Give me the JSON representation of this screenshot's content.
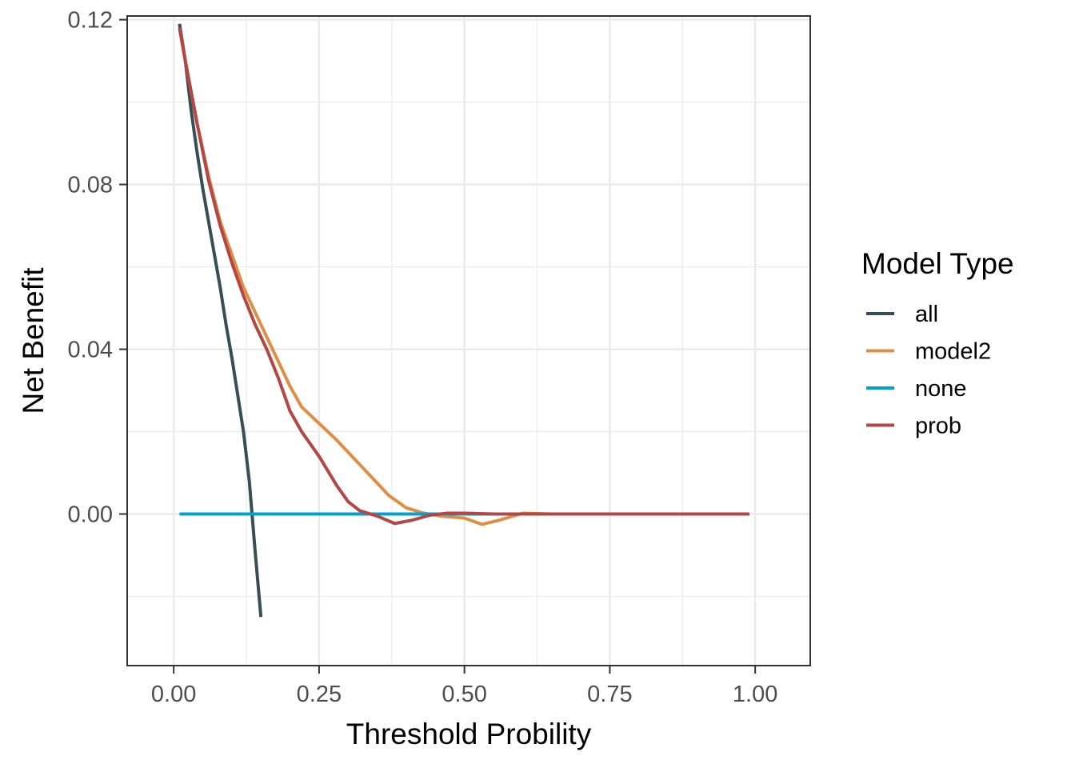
{
  "chart_data": {
    "type": "line",
    "xlabel": "Threshold Probility",
    "ylabel": "Net Benefit",
    "xlim": [
      -0.08,
      1.0947
    ],
    "ylim": [
      -0.0368,
      0.1209
    ],
    "x_ticks": [
      {
        "value": 0.0,
        "label": "0.00"
      },
      {
        "value": 0.25,
        "label": "0.25"
      },
      {
        "value": 0.5,
        "label": "0.50"
      },
      {
        "value": 0.75,
        "label": "0.75"
      },
      {
        "value": 1.0,
        "label": "1.00"
      }
    ],
    "y_ticks": [
      {
        "value": 0.0,
        "label": "0.00"
      },
      {
        "value": 0.04,
        "label": "0.04"
      },
      {
        "value": 0.08,
        "label": "0.08"
      },
      {
        "value": 0.12,
        "label": "0.12"
      }
    ],
    "x_minor_grid": [
      0.125,
      0.375,
      0.625,
      0.875
    ],
    "y_minor_grid": [
      -0.02,
      0.02,
      0.06,
      0.1
    ],
    "grid": true,
    "legend": {
      "title": "Model Type",
      "position": "right"
    },
    "series": [
      {
        "name": "all",
        "color": "#374e55",
        "points": [
          [
            0.01,
            0.119
          ],
          [
            0.02,
            0.11
          ],
          [
            0.03,
            0.098
          ],
          [
            0.04,
            0.088
          ],
          [
            0.05,
            0.079
          ],
          [
            0.06,
            0.071
          ],
          [
            0.07,
            0.063
          ],
          [
            0.08,
            0.055
          ],
          [
            0.09,
            0.046
          ],
          [
            0.1,
            0.038
          ],
          [
            0.11,
            0.029
          ],
          [
            0.12,
            0.02
          ],
          [
            0.13,
            0.008
          ],
          [
            0.14,
            -0.009
          ],
          [
            0.15,
            -0.025
          ]
        ]
      },
      {
        "name": "model2",
        "color": "#df8f44",
        "points": [
          [
            0.01,
            0.118
          ],
          [
            0.02,
            0.11
          ],
          [
            0.04,
            0.095
          ],
          [
            0.06,
            0.082
          ],
          [
            0.08,
            0.071
          ],
          [
            0.1,
            0.063
          ],
          [
            0.12,
            0.055
          ],
          [
            0.14,
            0.049
          ],
          [
            0.16,
            0.043
          ],
          [
            0.18,
            0.037
          ],
          [
            0.2,
            0.031
          ],
          [
            0.22,
            0.026
          ],
          [
            0.25,
            0.022
          ],
          [
            0.28,
            0.018
          ],
          [
            0.31,
            0.0135
          ],
          [
            0.34,
            0.009
          ],
          [
            0.37,
            0.0045
          ],
          [
            0.4,
            0.0015
          ],
          [
            0.43,
            0.0002
          ],
          [
            0.46,
            -0.0005
          ],
          [
            0.5,
            -0.001
          ],
          [
            0.53,
            -0.0025
          ],
          [
            0.56,
            -0.0015
          ],
          [
            0.6,
            0.0002
          ],
          [
            0.65,
            0.0
          ]
        ]
      },
      {
        "name": "none",
        "color": "#00a1d5",
        "points": [
          [
            0.01,
            0.0
          ],
          [
            0.99,
            0.0
          ]
        ]
      },
      {
        "name": "prob",
        "color": "#b24745",
        "points": [
          [
            0.01,
            0.118
          ],
          [
            0.02,
            0.11
          ],
          [
            0.04,
            0.095
          ],
          [
            0.06,
            0.081
          ],
          [
            0.08,
            0.07
          ],
          [
            0.1,
            0.061
          ],
          [
            0.12,
            0.053
          ],
          [
            0.14,
            0.046
          ],
          [
            0.16,
            0.04
          ],
          [
            0.18,
            0.033
          ],
          [
            0.2,
            0.025
          ],
          [
            0.22,
            0.02
          ],
          [
            0.25,
            0.014
          ],
          [
            0.28,
            0.007
          ],
          [
            0.3,
            0.003
          ],
          [
            0.32,
            0.0008
          ],
          [
            0.35,
            -0.0005
          ],
          [
            0.38,
            -0.0023
          ],
          [
            0.41,
            -0.0015
          ],
          [
            0.44,
            -0.0003
          ],
          [
            0.47,
            0.0002
          ],
          [
            0.5,
            0.0002
          ],
          [
            0.55,
            0.0
          ],
          [
            0.65,
            0.0
          ],
          [
            0.99,
            0.0
          ]
        ]
      }
    ]
  }
}
